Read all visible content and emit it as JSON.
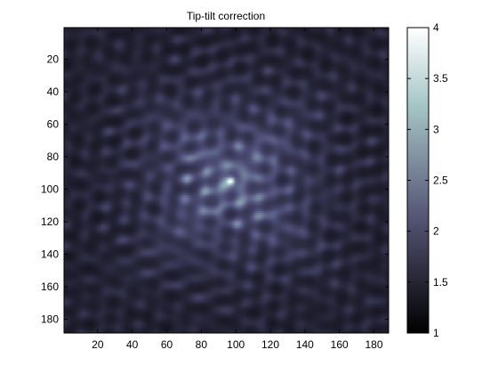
{
  "chart_data": {
    "type": "heatmap",
    "title": "Tip-tilt correction",
    "xlabel": "",
    "ylabel": "",
    "x_ticks": [
      "20",
      "40",
      "60",
      "80",
      "100",
      "120",
      "140",
      "160",
      "180"
    ],
    "y_ticks": [
      "20",
      "40",
      "60",
      "80",
      "100",
      "120",
      "140",
      "160",
      "180"
    ],
    "xlim": [
      0.5,
      188.5
    ],
    "ylim": [
      0.5,
      188.5
    ],
    "y_direction": "reverse",
    "grid": false,
    "image_size": [
      188,
      188
    ],
    "peak": {
      "x": 97,
      "y": 95,
      "value": 4.0
    },
    "colormap": "bone",
    "colorbar": {
      "range": [
        1,
        4
      ],
      "ticks": [
        "1",
        "1.5",
        "2",
        "2.5",
        "3",
        "3.5",
        "4"
      ]
    }
  }
}
